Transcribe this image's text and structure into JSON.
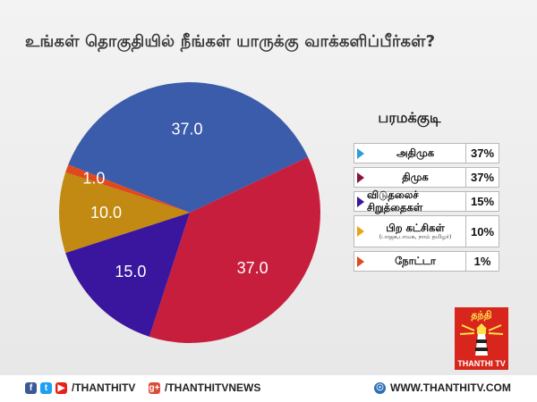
{
  "chart_data": {
    "type": "pie",
    "title": "உங்கள் தொகுதியில் நீங்கள் யாருக்கு வாக்களிப்பீர்கள்?",
    "subtitle": "பரமக்குடி",
    "slices": [
      {
        "name": "அதிமுக",
        "value": 37.0,
        "label": "37.0",
        "legend_value": "37%",
        "color": "#3b5bab"
      },
      {
        "name": "திமுக",
        "value": 37.0,
        "label": "37.0",
        "legend_value": "37%",
        "color": "#c81e3e"
      },
      {
        "name": "விடுதலைச் சிறுத்தைகள்",
        "value": 15.0,
        "label": "15.0",
        "legend_value": "15%",
        "color": "#3a169e"
      },
      {
        "name": "பிற கட்சிகள்",
        "sub": "(பாஜக,பாமக, நாம் தமிழர்)",
        "value": 10.0,
        "label": "10.0",
        "legend_value": "10%",
        "color": "#c28a12"
      },
      {
        "name": "நோட்டா",
        "value": 1.0,
        "label": "1.0",
        "legend_value": "1%",
        "color": "#e0491e"
      }
    ],
    "legend_position": "right"
  },
  "legend_marker_colors": [
    "#2a9fd6",
    "#8a1538",
    "#3a169e",
    "#e8a51c",
    "#e0491e"
  ],
  "logo": {
    "name": "தந்தி",
    "subtitle": "THANTHI TV"
  },
  "footer": {
    "facebook_handle": "/THANTHITV",
    "google_plus_handle": "/THANTHITVNEWS",
    "website": "WWW.THANTHITV.COM",
    "icons": [
      "facebook-icon",
      "twitter-icon",
      "youtube-icon",
      "google-plus-icon",
      "globe-icon"
    ]
  }
}
